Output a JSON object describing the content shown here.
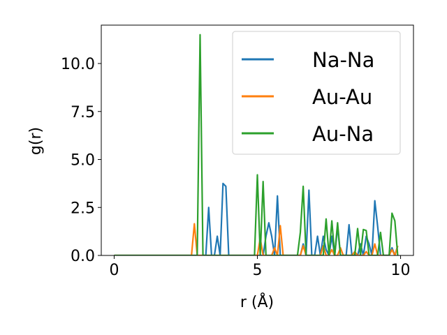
{
  "chart_data": {
    "type": "line",
    "xlabel": "r (Å)",
    "ylabel": "g(r)",
    "xlim": [
      -0.45,
      10.45
    ],
    "ylim": [
      0,
      12.0
    ],
    "x_ticks": [
      0,
      5,
      10
    ],
    "y_ticks": [
      0.0,
      2.5,
      5.0,
      7.5,
      10.0
    ],
    "x_tick_labels": [
      "0",
      "5",
      "10"
    ],
    "y_tick_labels": [
      "0.0",
      "2.5",
      "5.0",
      "7.5",
      "10.0"
    ],
    "grid": false,
    "legend": {
      "position": "top-right"
    },
    "series": [
      {
        "name": "Na-Na",
        "color": "#1f77b4",
        "x": [
          0,
          0.5,
          1.0,
          1.5,
          2.0,
          2.5,
          2.8,
          2.9,
          3.0,
          3.1,
          3.2,
          3.3,
          3.4,
          3.5,
          3.6,
          3.7,
          3.8,
          3.9,
          4.0,
          4.5,
          4.9,
          5.0,
          5.1,
          5.2,
          5.3,
          5.4,
          5.5,
          5.6,
          5.7,
          5.8,
          5.9,
          6.0,
          6.5,
          6.6,
          6.7,
          6.8,
          6.9,
          7.0,
          7.1,
          7.2,
          7.3,
          7.4,
          7.5,
          7.6,
          7.7,
          7.8,
          7.9,
          8.0,
          8.1,
          8.2,
          8.3,
          8.4,
          8.5,
          8.6,
          8.7,
          8.8,
          8.9,
          9.0,
          9.1,
          9.2,
          9.3,
          9.4,
          9.5,
          9.6,
          9.7,
          9.8,
          9.9
        ],
        "y": [
          0,
          0,
          0,
          0,
          0,
          0,
          0,
          0,
          0,
          0,
          0,
          2.5,
          0,
          0,
          1.0,
          0,
          3.75,
          3.6,
          0,
          0,
          0,
          0,
          0,
          0,
          1.0,
          1.7,
          1.0,
          0,
          3.1,
          0,
          0,
          0,
          0,
          0.6,
          0,
          3.4,
          0,
          0,
          1.0,
          0,
          1.0,
          0.3,
          0,
          1.0,
          0,
          1.5,
          0,
          0,
          0,
          1.6,
          0,
          0,
          0,
          0.6,
          0,
          1.0,
          0.6,
          0,
          2.85,
          1.5,
          0,
          0,
          0,
          0,
          0.4,
          0,
          0.5
        ]
      },
      {
        "name": "Au-Au",
        "color": "#ff7f0e",
        "x": [
          0,
          0.5,
          1.0,
          1.5,
          2.0,
          2.5,
          2.7,
          2.8,
          2.9,
          3.0,
          3.5,
          4.0,
          4.5,
          4.9,
          5.0,
          5.1,
          5.2,
          5.5,
          5.6,
          5.7,
          5.8,
          5.9,
          6.0,
          6.5,
          6.6,
          6.7,
          7.0,
          7.1,
          7.2,
          7.3,
          7.4,
          7.5,
          7.6,
          7.7,
          7.8,
          7.9,
          8.0,
          8.1,
          8.2,
          8.3,
          8.4,
          8.5,
          8.6,
          8.7,
          8.8,
          8.9,
          9.0,
          9.1,
          9.2,
          9.3,
          9.4,
          9.5,
          9.6,
          9.7,
          9.8,
          9.9
        ],
        "y": [
          0,
          0,
          0,
          0,
          0,
          0,
          0,
          1.65,
          0,
          0,
          0,
          0,
          0,
          0,
          0,
          0.9,
          0,
          0,
          0.4,
          0,
          1.55,
          0,
          0,
          0,
          0.5,
          0,
          0,
          0,
          0,
          0.5,
          0,
          0,
          0.3,
          0,
          0,
          0.4,
          0,
          0,
          0,
          0,
          0.2,
          0,
          0,
          0,
          0.2,
          0,
          0,
          0.6,
          0,
          0,
          0,
          0,
          0,
          0.3,
          0,
          0.5
        ]
      },
      {
        "name": "Au-Na",
        "color": "#2ca02c",
        "x": [
          0,
          0.5,
          1.0,
          1.5,
          2.0,
          2.5,
          2.9,
          3.0,
          3.1,
          3.2,
          3.5,
          4.0,
          4.5,
          4.9,
          5.0,
          5.1,
          5.2,
          5.3,
          5.5,
          6.0,
          6.4,
          6.5,
          6.6,
          6.7,
          6.8,
          7.0,
          7.1,
          7.2,
          7.3,
          7.4,
          7.5,
          7.6,
          7.7,
          7.8,
          7.9,
          8.0,
          8.1,
          8.2,
          8.3,
          8.4,
          8.5,
          8.6,
          8.7,
          8.8,
          8.9,
          9.0,
          9.1,
          9.2,
          9.3,
          9.4,
          9.5,
          9.6,
          9.7,
          9.8,
          9.9
        ],
        "y": [
          0,
          0,
          0,
          0,
          0,
          0,
          0,
          11.5,
          0,
          0,
          0,
          0,
          0,
          0,
          4.2,
          0,
          3.85,
          0,
          0,
          0,
          0,
          1.2,
          3.6,
          0,
          0,
          0,
          0,
          0,
          0,
          1.9,
          0,
          1.8,
          0,
          1.7,
          0,
          0,
          0,
          0,
          0,
          0,
          1.4,
          0,
          1.35,
          1.3,
          0,
          0,
          0,
          0,
          1.2,
          0,
          0,
          0,
          2.2,
          1.8,
          0
        ]
      }
    ]
  }
}
